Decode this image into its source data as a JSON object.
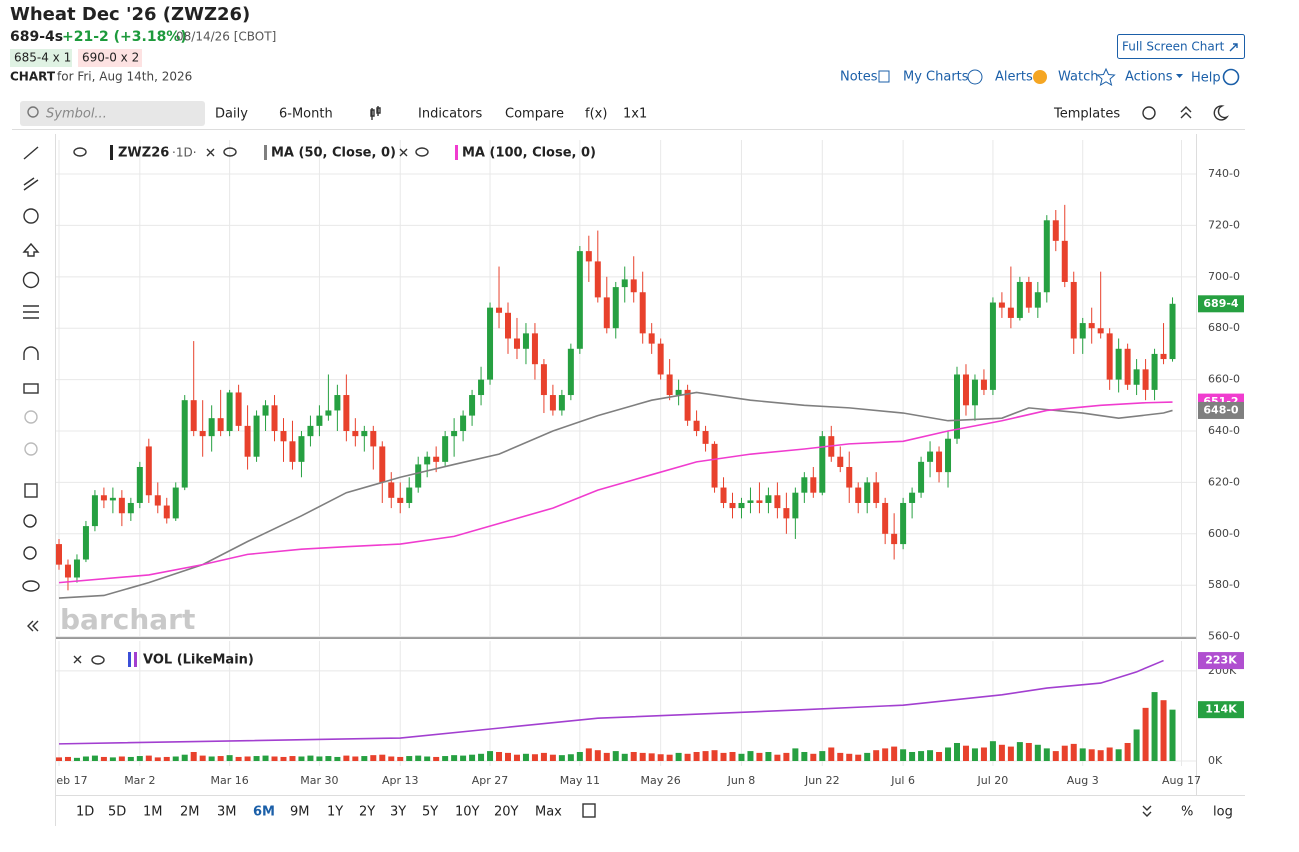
{
  "header": {
    "title": "Wheat Dec '26 (ZWZ26)",
    "last": "689-4s",
    "change": "+21-2 (+3.18%)",
    "date": "08/14/26 [CBOT]",
    "bid": "685-4 x 1",
    "ask": "690-0 x 2",
    "chart_label": "CHART",
    "chart_date": "for Fri, Aug 14th, 2026",
    "full_screen": "Full Screen Chart",
    "links": [
      "Notes",
      "My Charts",
      "Alerts",
      "Watch",
      "Actions",
      "Help"
    ]
  },
  "toolbar": {
    "symbol_placeholder": "Symbol...",
    "items": [
      "Daily",
      "6-Month",
      "Indicators",
      "Compare",
      "f(x)",
      "1x1"
    ],
    "templates": "Templates"
  },
  "watermark": "barchart",
  "chart_data": [
    {
      "type": "candlestick",
      "symbol": "ZWZ26",
      "interval": "·1D·",
      "up_color": "#26a041",
      "down_color": "#e8412c",
      "open": [
        596,
        588,
        583,
        590,
        603,
        615,
        613,
        614,
        608,
        612,
        634,
        615,
        611,
        606,
        618,
        652,
        640,
        638,
        645,
        640,
        655,
        642,
        630,
        646,
        650,
        640,
        636,
        628,
        638,
        642,
        646,
        648,
        654,
        640,
        638,
        640,
        634,
        620,
        614,
        612,
        618,
        627,
        630,
        628,
        638,
        640,
        646,
        654,
        660,
        688,
        686,
        676,
        672,
        678,
        666,
        654,
        648,
        654,
        672,
        710,
        706,
        692,
        680,
        696,
        699,
        694,
        678,
        674,
        662,
        654,
        656,
        644,
        640,
        635,
        618,
        612,
        610,
        612,
        613,
        612,
        615,
        610,
        606,
        616,
        622,
        616,
        638,
        630,
        626,
        618,
        612,
        620,
        612,
        600,
        596,
        612,
        616,
        628,
        632,
        624,
        637,
        662,
        650,
        660,
        656,
        690,
        688,
        684,
        698,
        688,
        694,
        722,
        714,
        698,
        676,
        682,
        680,
        678,
        660,
        672,
        658,
        664,
        656,
        670,
        668
      ],
      "high": [
        598,
        590,
        592,
        605,
        617,
        618,
        618,
        617,
        614,
        628,
        637,
        620,
        614,
        620,
        654,
        675,
        652,
        650,
        656,
        656,
        658,
        650,
        648,
        652,
        654,
        645,
        644,
        640,
        646,
        650,
        662,
        658,
        662,
        645,
        642,
        642,
        636,
        624,
        620,
        622,
        630,
        632,
        634,
        640,
        645,
        648,
        656,
        665,
        690,
        704,
        690,
        684,
        682,
        682,
        668,
        658,
        656,
        674,
        712,
        716,
        718,
        700,
        698,
        704,
        708,
        702,
        682,
        676,
        668,
        660,
        658,
        648,
        642,
        636,
        622,
        616,
        614,
        618,
        620,
        618,
        620,
        616,
        618,
        624,
        626,
        640,
        642,
        634,
        632,
        620,
        622,
        624,
        614,
        608,
        614,
        618,
        630,
        636,
        634,
        640,
        665,
        666,
        662,
        664,
        692,
        694,
        704,
        700,
        700,
        698,
        724,
        726,
        728,
        702,
        684,
        688,
        702,
        680,
        676,
        674,
        668,
        668,
        672,
        682,
        692
      ],
      "low": [
        586,
        578,
        581,
        589,
        601,
        610,
        608,
        603,
        605,
        610,
        612,
        608,
        604,
        605,
        617,
        638,
        630,
        632,
        638,
        638,
        640,
        625,
        628,
        640,
        636,
        628,
        625,
        622,
        634,
        638,
        644,
        640,
        636,
        634,
        632,
        625,
        612,
        610,
        608,
        610,
        616,
        622,
        624,
        626,
        630,
        636,
        642,
        650,
        658,
        680,
        670,
        668,
        666,
        660,
        647,
        646,
        646,
        652,
        670,
        698,
        690,
        678,
        676,
        690,
        690,
        674,
        670,
        660,
        652,
        650,
        642,
        638,
        632,
        616,
        610,
        606,
        606,
        608,
        608,
        608,
        606,
        600,
        598,
        612,
        614,
        615,
        628,
        624,
        612,
        608,
        608,
        610,
        596,
        590,
        594,
        606,
        614,
        622,
        620,
        618,
        635,
        646,
        644,
        654,
        654,
        684,
        680,
        683,
        686,
        684,
        690,
        710,
        696,
        670,
        670,
        674,
        676,
        656,
        655,
        656,
        654,
        652,
        652,
        666,
        667
      ],
      "close": [
        588,
        583,
        590,
        603,
        615,
        613,
        614,
        608,
        612,
        626,
        615,
        611,
        606,
        618,
        652,
        640,
        638,
        645,
        640,
        655,
        642,
        630,
        646,
        650,
        640,
        636,
        628,
        638,
        642,
        646,
        648,
        654,
        640,
        638,
        640,
        634,
        620,
        614,
        612,
        618,
        627,
        630,
        628,
        638,
        640,
        646,
        654,
        660,
        688,
        686,
        676,
        672,
        678,
        666,
        654,
        648,
        654,
        672,
        710,
        706,
        692,
        680,
        696,
        699,
        694,
        678,
        674,
        662,
        654,
        656,
        644,
        640,
        635,
        618,
        612,
        610,
        612,
        613,
        612,
        615,
        610,
        606,
        616,
        622,
        616,
        638,
        630,
        626,
        618,
        612,
        620,
        612,
        600,
        596,
        612,
        616,
        628,
        632,
        624,
        637,
        662,
        650,
        660,
        656,
        690,
        688,
        684,
        698,
        688,
        694,
        722,
        714,
        698,
        676,
        682,
        680,
        678,
        660,
        672,
        658,
        664,
        656,
        670,
        668,
        689.5
      ],
      "lines": [
        {
          "name": "MA (50, Close, 0)",
          "color": "#7f7f7f",
          "x": [
            0,
            5,
            10,
            16,
            21,
            27,
            32,
            38,
            44,
            49,
            55,
            60,
            66,
            71,
            77,
            83,
            88,
            94,
            99,
            105,
            108,
            114,
            118,
            123,
            124
          ],
          "values": [
            575,
            576,
            581,
            588,
            597,
            607,
            616,
            622,
            627,
            631,
            640,
            646,
            652,
            655,
            652,
            650,
            649,
            647,
            644,
            645,
            649,
            647,
            645,
            647,
            648
          ]
        },
        {
          "name": "MA (100, Close, 0)",
          "color": "#f03ccf",
          "x": [
            0,
            10,
            16,
            21,
            27,
            32,
            38,
            44,
            49,
            55,
            60,
            66,
            71,
            77,
            83,
            88,
            94,
            99,
            105,
            110,
            116,
            121,
            124
          ],
          "values": [
            581,
            584,
            588,
            592,
            594,
            595,
            596,
            599,
            604,
            610,
            617,
            623,
            628,
            631,
            633,
            635,
            636,
            640,
            644,
            648,
            650,
            651,
            651.25
          ]
        }
      ],
      "last_labels": [
        {
          "value": 651.25,
          "label": "651-2",
          "color": "#f03ccf"
        },
        {
          "value": 648,
          "label": "648-0",
          "color": "#7f7f7f"
        },
        {
          "value": 689.5,
          "label": "689-4",
          "color": "#26a041"
        }
      ],
      "ylim": [
        560,
        749
      ],
      "yticks": [
        {
          "value": 560,
          "label": "560-0"
        },
        {
          "value": 580,
          "label": "580-0"
        },
        {
          "value": 600,
          "label": "600-0"
        },
        {
          "value": 620,
          "label": "620-0"
        },
        {
          "value": 640,
          "label": "640-0"
        },
        {
          "value": 660,
          "label": "660-0"
        },
        {
          "value": 680,
          "label": "680-0"
        },
        {
          "value": 700,
          "label": "700-0"
        },
        {
          "value": 720,
          "label": "720-0"
        },
        {
          "value": 740,
          "label": "740-0"
        }
      ],
      "xticks": [
        {
          "value": 0,
          "label": "eb 17"
        },
        {
          "value": 9,
          "label": "Mar 2"
        },
        {
          "value": 19,
          "label": "Mar 16"
        },
        {
          "value": 29,
          "label": "Mar 30"
        },
        {
          "value": 38,
          "label": "Apr 13"
        },
        {
          "value": 48,
          "label": "Apr 27"
        },
        {
          "value": 58,
          "label": "May 11"
        },
        {
          "value": 67,
          "label": "May 26"
        },
        {
          "value": 76,
          "label": "Jun 8"
        },
        {
          "value": 85,
          "label": "Jun 22"
        },
        {
          "value": 94,
          "label": "Jul 6"
        },
        {
          "value": 104,
          "label": "Jul 20"
        },
        {
          "value": 114,
          "label": "Aug 3"
        },
        {
          "value": 125,
          "label": "Aug 17"
        }
      ],
      "grid": true
    },
    {
      "type": "bar",
      "legend": "VOL (LikeMain)",
      "values": [
        8,
        9,
        7,
        10,
        12,
        9,
        8,
        10,
        9,
        11,
        12,
        8,
        9,
        10,
        14,
        20,
        12,
        10,
        11,
        13,
        9,
        10,
        11,
        12,
        10,
        9,
        11,
        10,
        12,
        10,
        11,
        9,
        12,
        10,
        11,
        13,
        14,
        10,
        9,
        11,
        12,
        10,
        9,
        11,
        13,
        12,
        14,
        16,
        22,
        20,
        18,
        14,
        16,
        15,
        18,
        14,
        13,
        15,
        20,
        28,
        24,
        18,
        22,
        16,
        20,
        18,
        17,
        15,
        14,
        18,
        16,
        20,
        22,
        24,
        18,
        20,
        16,
        22,
        18,
        20,
        14,
        18,
        28,
        20,
        16,
        22,
        30,
        18,
        16,
        14,
        18,
        24,
        28,
        32,
        26,
        20,
        22,
        24,
        20,
        30,
        40,
        34,
        28,
        30,
        44,
        36,
        32,
        42,
        40,
        36,
        28,
        22,
        34,
        38,
        28,
        26,
        24,
        30,
        26,
        40,
        70,
        118,
        153,
        135,
        114
      ],
      "line": {
        "color": "#a23fd0",
        "x": [
          0,
          38,
          60,
          82,
          94,
          105,
          110,
          116,
          120,
          123
        ],
        "values": [
          38,
          51,
          95,
          113,
          124,
          147,
          162,
          173,
          198,
          223
        ]
      },
      "last_labels": [
        {
          "value": 223,
          "label": "223K",
          "color": "#b04fd0"
        },
        {
          "value": 114,
          "label": "114K",
          "color": "#26a041"
        }
      ],
      "ylim": [
        0,
        268
      ],
      "yticks": [
        {
          "value": 0,
          "label": "0K"
        },
        {
          "value": 200,
          "label": "200K"
        }
      ],
      "grid": true
    }
  ],
  "range_bar": {
    "items": [
      "1D",
      "5D",
      "1M",
      "2M",
      "3M",
      "6M",
      "9M",
      "1Y",
      "2Y",
      "3Y",
      "5Y",
      "10Y",
      "20Y",
      "Max"
    ],
    "selected": "6M",
    "percent": "%",
    "log": "log"
  }
}
